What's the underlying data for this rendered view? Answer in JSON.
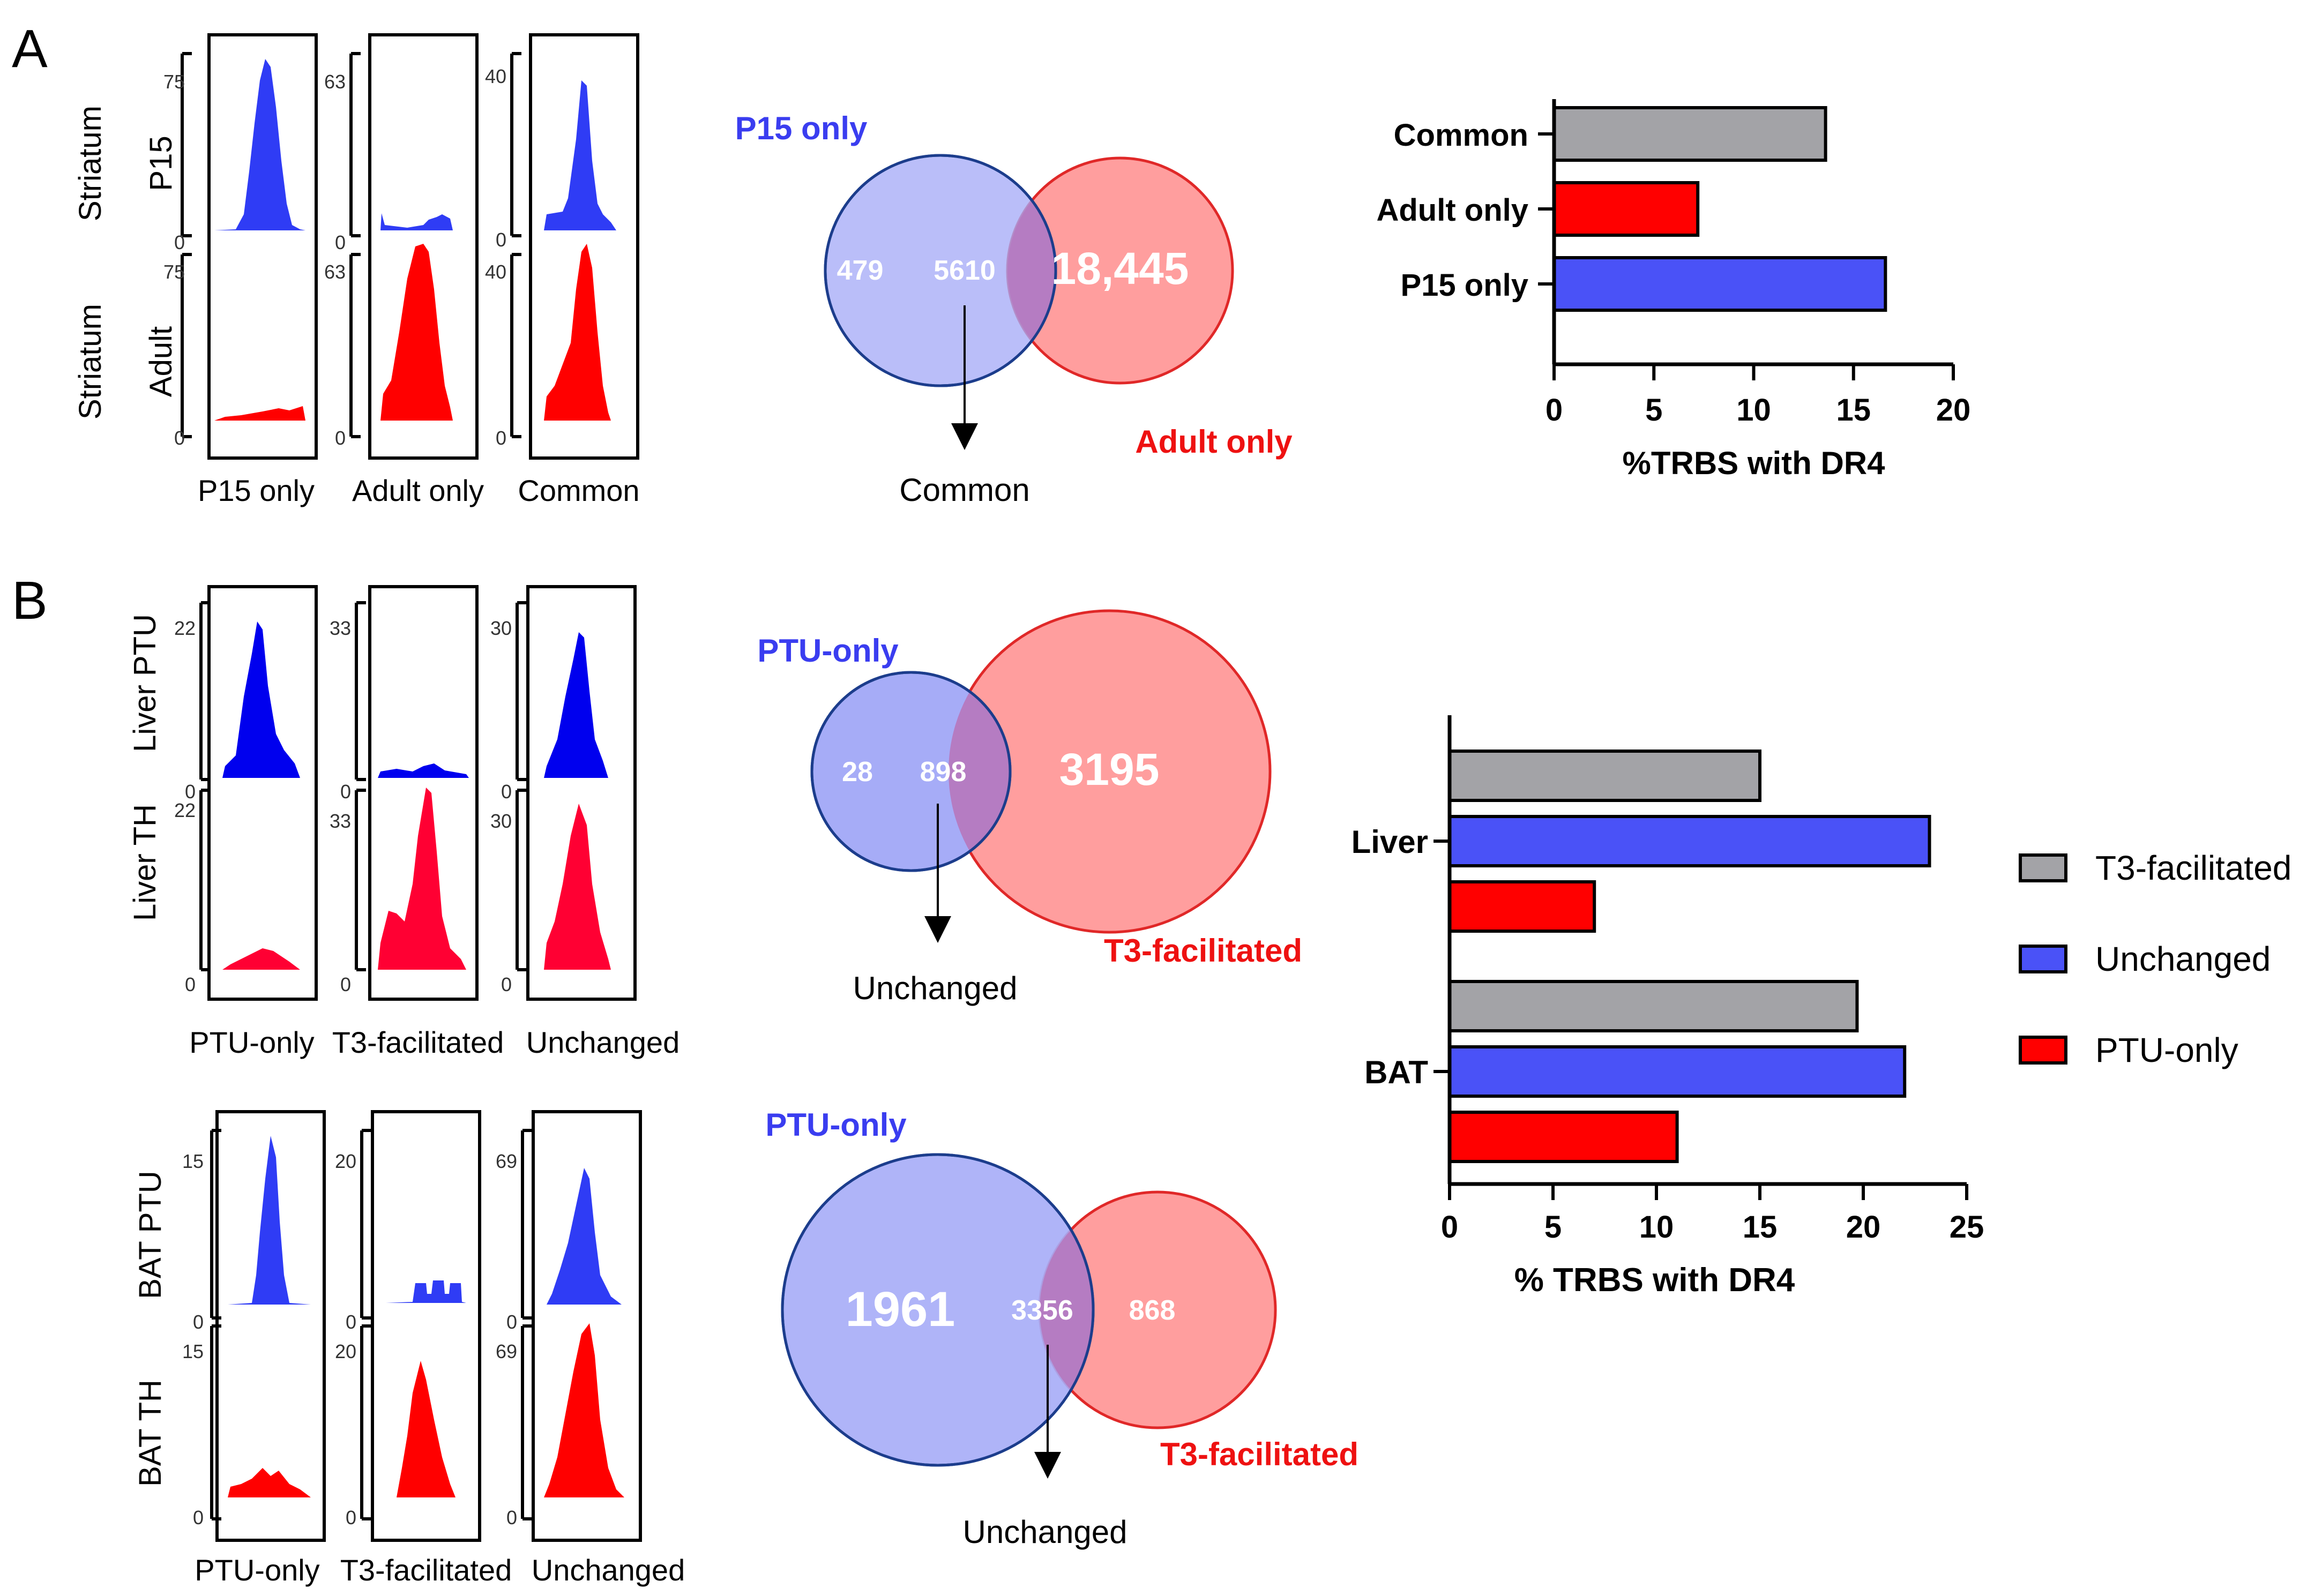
{
  "panel_a": {
    "letter": "A",
    "tracks": {
      "row_labels": [
        {
          "tissue": "Striatum",
          "condition": "P15"
        },
        {
          "tissue": "Striatum",
          "condition": "Adult"
        }
      ],
      "column_labels": [
        "P15 only",
        "Adult only",
        "Common"
      ],
      "scales": [
        {
          "top": "75",
          "bottom": "0"
        },
        {
          "top": "63",
          "bottom": "0"
        },
        {
          "top": "40",
          "bottom": "0"
        }
      ],
      "colors": {
        "top": "#2f3cf5",
        "bottom": "#ff0000"
      }
    },
    "venn": {
      "left_label": "P15 only",
      "right_label": "Adult only",
      "left_value": "479",
      "overlap_value": "5610",
      "right_value": "18,445",
      "arrow_label": "Common"
    },
    "bar_chart": {
      "xlabel": "%TRBS with DR4",
      "ticks": [
        "0",
        "5",
        "10",
        "15",
        "20"
      ],
      "categories": [
        {
          "name": "Common",
          "value": 13.6,
          "color": "#a3a3a7"
        },
        {
          "name": "Adult only",
          "value": 7.2,
          "color": "#ff0000"
        },
        {
          "name": "P15 only",
          "value": 16.6,
          "color": "#4a52f7"
        }
      ]
    }
  },
  "panel_b": {
    "letter": "B",
    "liver_tracks": {
      "row_labels": [
        "Liver PTU",
        "Liver TH"
      ],
      "column_labels": [
        "PTU-only",
        "T3-facilitated",
        "Unchanged"
      ],
      "scales": [
        {
          "top": "22",
          "bottom": "0"
        },
        {
          "top": "33",
          "bottom": "0"
        },
        {
          "top": "30",
          "bottom": "0"
        }
      ],
      "colors": {
        "top": "#0000ee",
        "bottom": "#ff0033"
      }
    },
    "bat_tracks": {
      "row_labels": [
        "BAT PTU",
        "BAT TH"
      ],
      "column_labels": [
        "PTU-only",
        "T3-facilitated",
        "Unchanged"
      ],
      "scales": [
        {
          "top": "15",
          "bottom": "0"
        },
        {
          "top": "20",
          "bottom": "0"
        },
        {
          "top": "69",
          "bottom": "0"
        }
      ],
      "colors": {
        "top": "#2f3cf5",
        "bottom": "#ff0000"
      }
    },
    "liver_venn": {
      "left_label": "PTU-only",
      "right_label": "T3-facilitated",
      "left_value": "28",
      "overlap_value": "898",
      "right_value": "3195",
      "arrow_label": "Unchanged"
    },
    "bat_venn": {
      "left_label": "PTU-only",
      "right_label": "T3-facilitated",
      "left_value": "1961",
      "overlap_value": "3356",
      "right_value": "868",
      "arrow_label": "Unchanged"
    }
  },
  "chart_data": {
    "type": "bar",
    "title": "",
    "xlabel": "% TRBS with DR4",
    "ylabel": "",
    "xlim": [
      0,
      25
    ],
    "ticks": [
      "0",
      "5",
      "10",
      "15",
      "20",
      "25"
    ],
    "categories": [
      "Liver",
      "BAT"
    ],
    "series": [
      {
        "name": "T3-facilitated",
        "color": "#a3a3a7",
        "values": [
          15.0,
          19.7
        ]
      },
      {
        "name": "Unchanged",
        "color": "#4a52f7",
        "values": [
          23.2,
          22.0
        ]
      },
      {
        "name": "PTU-only",
        "color": "#ff0000",
        "values": [
          7.0,
          11.0
        ]
      }
    ],
    "legend": "right"
  }
}
